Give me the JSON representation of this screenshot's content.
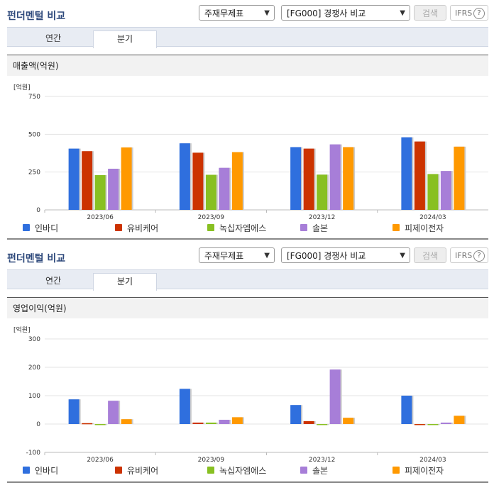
{
  "panels": [
    {
      "title": "펀더멘털 비교",
      "select1": "주재무제표",
      "select2": "[FG000] 경쟁사 비교",
      "search_label": "검색",
      "ifrs_label": "IFRS",
      "ifrs_help": "?",
      "tabs": [
        {
          "label": "연간"
        },
        {
          "label": "분기"
        }
      ],
      "active_tab": "분기",
      "chart_title": "매출액(억원)"
    },
    {
      "title": "펀더멘털 비교",
      "select1": "주재무제표",
      "select2": "[FG000] 경쟁사 비교",
      "search_label": "검색",
      "ifrs_label": "IFRS",
      "ifrs_help": "?",
      "tabs": [
        {
          "label": "연간"
        },
        {
          "label": "분기"
        }
      ],
      "active_tab": "분기",
      "chart_title": "영업이익(억원)"
    }
  ],
  "colors": {
    "인바디": "#2f6fde",
    "유비케어": "#cc3300",
    "녹십자엠에스": "#88c022",
    "솔본": "#a77ed8",
    "피제이전자": "#ff9900"
  },
  "chart_data": [
    {
      "type": "bar",
      "unit_label": "[억원]",
      "categories": [
        "2023/06",
        "2023/09",
        "2023/12",
        "2024/03"
      ],
      "ylim": [
        0,
        750
      ],
      "yticks": [
        0,
        250,
        500,
        750
      ],
      "legend_position": "bottom",
      "series": [
        {
          "name": "인바디",
          "values": [
            405,
            440,
            415,
            480
          ]
        },
        {
          "name": "유비케어",
          "values": [
            388,
            378,
            405,
            452
          ]
        },
        {
          "name": "녹십자엠에스",
          "values": [
            230,
            232,
            233,
            237
          ]
        },
        {
          "name": "솔본",
          "values": [
            272,
            278,
            433,
            257
          ]
        },
        {
          "name": "피제이전자",
          "values": [
            413,
            382,
            415,
            418
          ]
        }
      ]
    },
    {
      "type": "bar",
      "unit_label": "[억원]",
      "categories": [
        "2023/06",
        "2023/09",
        "2023/12",
        "2024/03"
      ],
      "ylim": [
        -100,
        300
      ],
      "yticks": [
        -100,
        0,
        100,
        200,
        300
      ],
      "legend_position": "bottom",
      "series": [
        {
          "name": "인바디",
          "values": [
            87,
            124,
            67,
            100
          ]
        },
        {
          "name": "유비케어",
          "values": [
            3,
            5,
            10,
            0
          ]
        },
        {
          "name": "녹십자엠에스",
          "values": [
            -3,
            5,
            0,
            0
          ]
        },
        {
          "name": "솔본",
          "values": [
            82,
            15,
            192,
            5
          ]
        },
        {
          "name": "피제이전자",
          "values": [
            17,
            24,
            22,
            29
          ]
        }
      ]
    }
  ]
}
